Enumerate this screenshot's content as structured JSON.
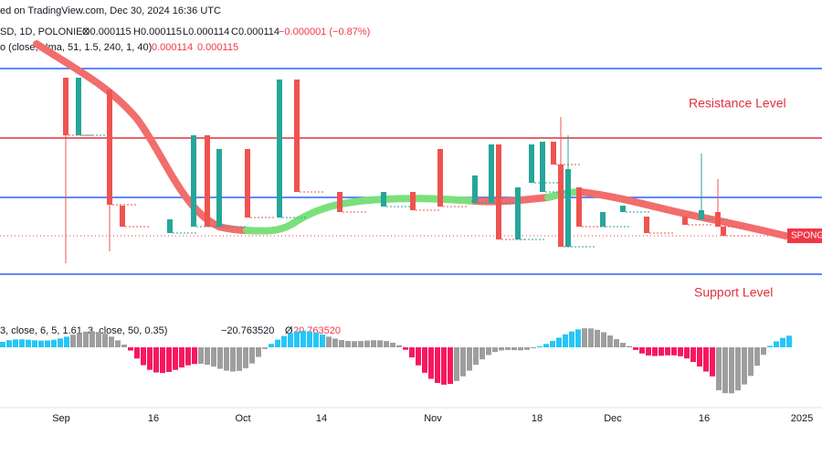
{
  "header": {
    "source": "ed on TradingView.com, Dec 30, 2024 16:36 UTC",
    "symbol": "SD, 1D, POLONIEX",
    "open": "O0.000115",
    "high": "H0.000115",
    "low": "L0.000114",
    "close": "C0.000114",
    "change": "−0.000001 (−0.87%)",
    "indicator": "o (close, Hma, 51, 1.5, 240, 1, 40)",
    "indicator_values": [
      "0.000114",
      "0.000115"
    ]
  },
  "levels": {
    "resistance": "Resistance Level",
    "support": "Support Level"
  },
  "price_tag": "SPONG",
  "oscillator": {
    "settings": "3, close, 6, 5, 1.61, 3, close, 50, 0.35)",
    "lower": "−20.763520",
    "symbol": "Ø",
    "upper": "20.763520"
  },
  "x_axis": [
    "Sep",
    "16",
    "Oct",
    "14",
    "Nov",
    "18",
    "Dec",
    "16",
    "2025"
  ]
}
